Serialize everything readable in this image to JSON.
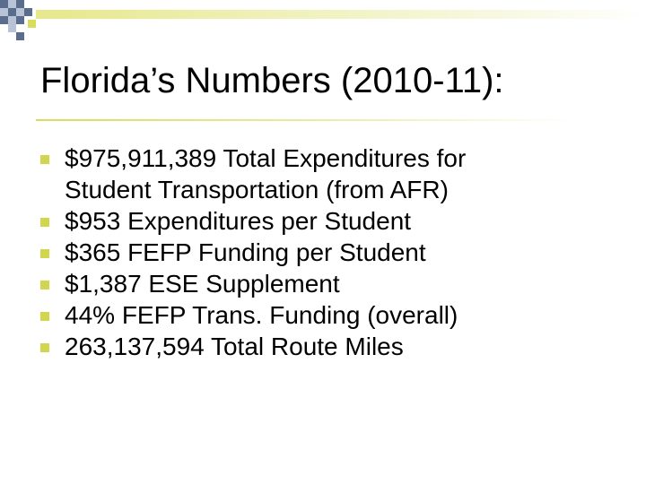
{
  "slide": {
    "title": "Florida’s Numbers (2010-11):",
    "bullets": [
      {
        "lines": [
          "$975,911,389 Total Expenditures for",
          "Student Transportation (from AFR)"
        ]
      },
      {
        "lines": [
          "$953 Expenditures per Student"
        ]
      },
      {
        "lines": [
          "$365 FEFP Funding per Student"
        ]
      },
      {
        "lines": [
          "$1,387 ESE Supplement"
        ]
      },
      {
        "lines": [
          "44% FEFP Trans. Funding (overall)"
        ]
      },
      {
        "lines": [
          "263,137,594 Total Route Miles"
        ]
      }
    ]
  },
  "colors": {
    "accent": "#d2d64c",
    "decor_navy": "#5b6d8f",
    "text": "#000000",
    "background": "#ffffff"
  },
  "icons": {
    "bullet": "square-bullet-icon"
  }
}
